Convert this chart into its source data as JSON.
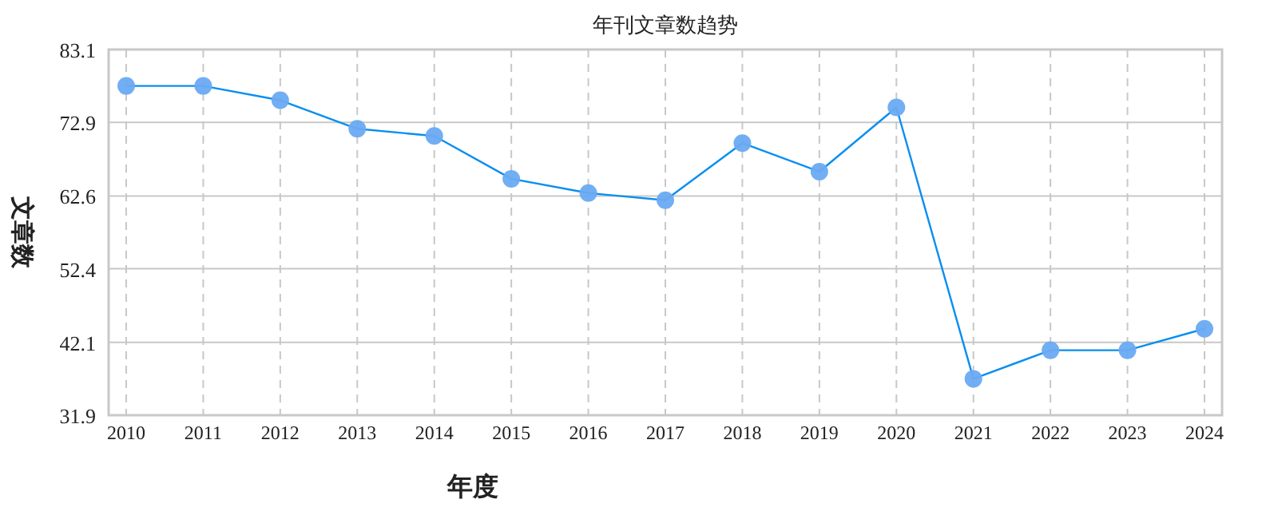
{
  "chart_data": {
    "type": "line",
    "title": "年刊文章数趋势",
    "xlabel": "年度",
    "ylabel": "文章数",
    "categories": [
      "2010",
      "2011",
      "2012",
      "2013",
      "2014",
      "2015",
      "2016",
      "2017",
      "2018",
      "2019",
      "2020",
      "2021",
      "2022",
      "2023",
      "2024"
    ],
    "series": [
      {
        "color": "#0a8ef0",
        "values": [
          78,
          78,
          76,
          72,
          71,
          65,
          63,
          62,
          70,
          66,
          75,
          37,
          41,
          41,
          44
        ]
      }
    ],
    "ylim": [
      31.9,
      83.1
    ],
    "yticks": [
      31.9,
      42.1,
      52.4,
      62.6,
      72.9,
      83.1
    ],
    "grid": true,
    "marker": "circle",
    "line_style": "solid"
  }
}
